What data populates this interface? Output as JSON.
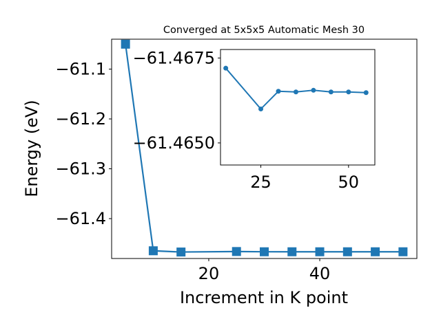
{
  "chart_data": [
    {
      "type": "line",
      "title": "Converged at 5x5x5 Automatic Mesh 30",
      "xlabel": "Increment in K point",
      "ylabel": "Energy (eV)",
      "xlim": [
        2.5,
        57.5
      ],
      "ylim": [
        -61.48,
        -61.04
      ],
      "xticks": [
        20,
        40
      ],
      "yticks": [
        -61.4,
        -61.3,
        -61.2,
        -61.1
      ],
      "xtick_labels": [
        "20",
        "40"
      ],
      "ytick_labels": [
        "−61.4",
        "−61.3",
        "−61.2",
        "−61.1"
      ],
      "grid": false,
      "marker": "square",
      "color": "#1f77b4",
      "series": [
        {
          "x": [
            5,
            10,
            15,
            25,
            30,
            35,
            40,
            45,
            50,
            55
          ],
          "y": [
            -61.05,
            -61.4645,
            -61.467,
            -61.466,
            -61.4665,
            -61.4665,
            -61.4665,
            -61.4665,
            -61.4665,
            -61.4665
          ]
        }
      ]
    },
    {
      "type": "line",
      "inset": true,
      "xlim": [
        13.5,
        57.5
      ],
      "ylim": [
        -61.46435,
        -61.46775
      ],
      "xticks": [
        25,
        50
      ],
      "yticks": [
        -61.4675,
        -61.465
      ],
      "xtick_labels": [
        "25",
        "50"
      ],
      "ytick_labels": [
        "−61.4675",
        "−61.4650"
      ],
      "grid": false,
      "marker": "circle",
      "color": "#1f77b4",
      "series": [
        {
          "x": [
            15,
            25,
            30,
            35,
            40,
            45,
            50,
            55
          ],
          "y": [
            -61.4672,
            -61.466,
            -61.46652,
            -61.4665,
            -61.46655,
            -61.4665,
            -61.4665,
            -61.46648
          ]
        }
      ]
    }
  ]
}
